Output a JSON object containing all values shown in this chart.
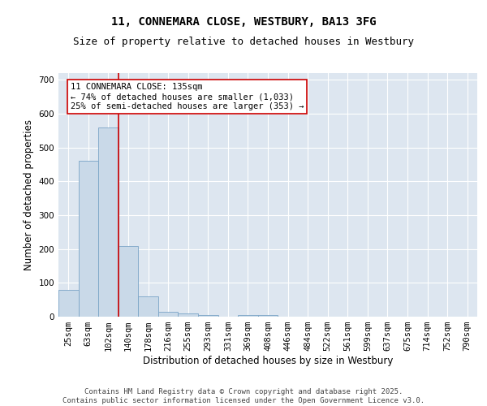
{
  "title": "11, CONNEMARA CLOSE, WESTBURY, BA13 3FG",
  "subtitle": "Size of property relative to detached houses in Westbury",
  "xlabel": "Distribution of detached houses by size in Westbury",
  "ylabel": "Number of detached properties",
  "categories": [
    "25sqm",
    "63sqm",
    "102sqm",
    "140sqm",
    "178sqm",
    "216sqm",
    "255sqm",
    "293sqm",
    "331sqm",
    "369sqm",
    "408sqm",
    "446sqm",
    "484sqm",
    "522sqm",
    "561sqm",
    "599sqm",
    "637sqm",
    "675sqm",
    "714sqm",
    "752sqm",
    "790sqm"
  ],
  "bar_heights": [
    80,
    460,
    560,
    210,
    60,
    15,
    10,
    5,
    0,
    5,
    5,
    0,
    0,
    0,
    0,
    0,
    0,
    0,
    0,
    0,
    0
  ],
  "bar_color": "#c9d9e8",
  "bar_edge_color": "#7aa4c6",
  "property_line_color": "#cc0000",
  "property_line_x": 2.5,
  "annotation_text": "11 CONNEMARA CLOSE: 135sqm\n← 74% of detached houses are smaller (1,033)\n25% of semi-detached houses are larger (353) →",
  "annotation_box_color": "#ffffff",
  "annotation_box_edge_color": "#cc0000",
  "ylim": [
    0,
    720
  ],
  "yticks": [
    0,
    100,
    200,
    300,
    400,
    500,
    600,
    700
  ],
  "background_color": "#dde6f0",
  "footer_text": "Contains HM Land Registry data © Crown copyright and database right 2025.\nContains public sector information licensed under the Open Government Licence v3.0.",
  "title_fontsize": 10,
  "subtitle_fontsize": 9,
  "xlabel_fontsize": 8.5,
  "ylabel_fontsize": 8.5,
  "tick_fontsize": 7.5,
  "annotation_fontsize": 7.5,
  "footer_fontsize": 6.5
}
